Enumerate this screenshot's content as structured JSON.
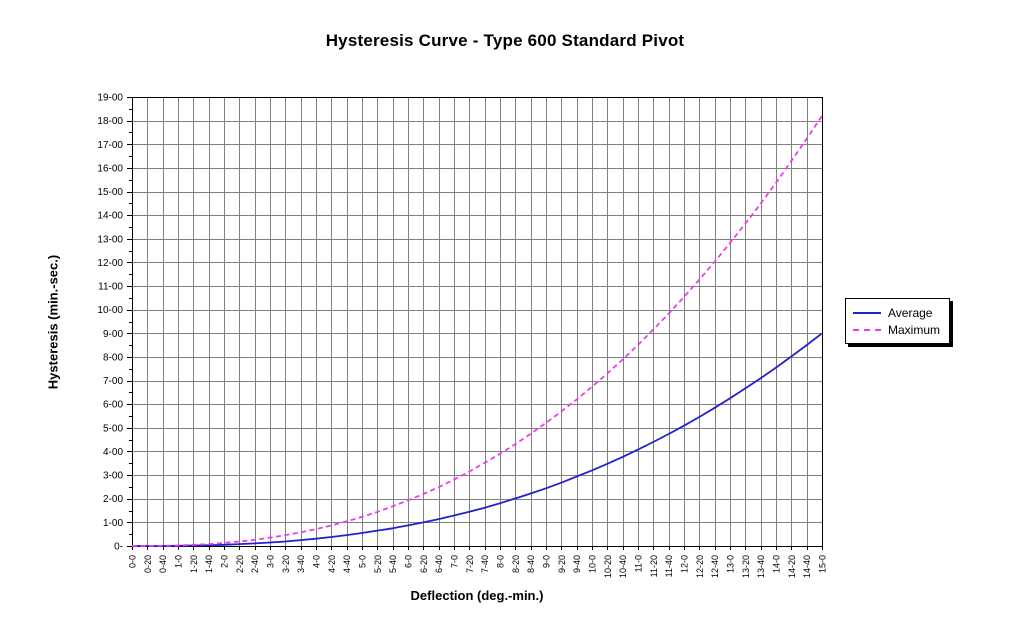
{
  "chart_data": {
    "type": "line",
    "title": "Hysteresis Curve - Type 600 Standard Pivot",
    "xlabel": "Deflection (deg.-min.)",
    "ylabel": "Hysteresis (min.-sec.)",
    "ylim": [
      0,
      19
    ],
    "grid": true,
    "legend_position": "right",
    "value_unit": "decimal minutes on the min.-sec. axis",
    "ytick_labels": [
      "0-",
      "1-00",
      "2-00",
      "3-00",
      "4-00",
      "5-00",
      "6-00",
      "7-00",
      "8-00",
      "9-00",
      "10-00",
      "11-00",
      "12-00",
      "13-00",
      "14-00",
      "15-00",
      "16-00",
      "17-00",
      "18-00",
      "19-00"
    ],
    "categories": [
      "0-0",
      "0-20",
      "0-40",
      "1-0",
      "1-20",
      "1-40",
      "2-0",
      "2-20",
      "2-40",
      "3-0",
      "3-20",
      "3-40",
      "4-0",
      "4-20",
      "4-40",
      "5-0",
      "5-20",
      "5-40",
      "6-0",
      "6-20",
      "6-40",
      "7-0",
      "7-20",
      "7-40",
      "8-0",
      "8-20",
      "8-40",
      "9-0",
      "9-20",
      "9-40",
      "10-0",
      "10-20",
      "10-40",
      "11-0",
      "11-20",
      "11-40",
      "12-0",
      "12-20",
      "12-40",
      "13-0",
      "13-20",
      "13-40",
      "14-0",
      "14-20",
      "14-40",
      "15-0"
    ],
    "series": [
      {
        "name": "Average",
        "color": "#2222CC",
        "style": "solid",
        "values": [
          0,
          0,
          0,
          0.01,
          0.02,
          0.03,
          0.05,
          0.08,
          0.11,
          0.15,
          0.19,
          0.25,
          0.31,
          0.38,
          0.46,
          0.55,
          0.65,
          0.75,
          0.87,
          1.0,
          1.14,
          1.29,
          1.45,
          1.62,
          1.81,
          2.01,
          2.22,
          2.44,
          2.68,
          2.94,
          3.2,
          3.48,
          3.77,
          4.08,
          4.4,
          4.74,
          5.09,
          5.46,
          5.85,
          6.25,
          6.67,
          7.1,
          7.55,
          8.02,
          8.5,
          9.0
        ]
      },
      {
        "name": "Maximum",
        "color": "#EE3BEE",
        "style": "dashed",
        "values": [
          0,
          0,
          0.01,
          0.02,
          0.05,
          0.08,
          0.13,
          0.19,
          0.26,
          0.35,
          0.46,
          0.58,
          0.71,
          0.87,
          1.04,
          1.23,
          1.44,
          1.68,
          1.93,
          2.2,
          2.49,
          2.81,
          3.15,
          3.52,
          3.9,
          4.31,
          4.75,
          5.21,
          5.69,
          6.2,
          6.74,
          7.3,
          7.89,
          8.51,
          9.16,
          9.83,
          10.54,
          11.27,
          12.03,
          12.82,
          13.64,
          14.49,
          15.37,
          16.29,
          17.23,
          18.2
        ]
      }
    ],
    "gridline_color": "#808080"
  }
}
